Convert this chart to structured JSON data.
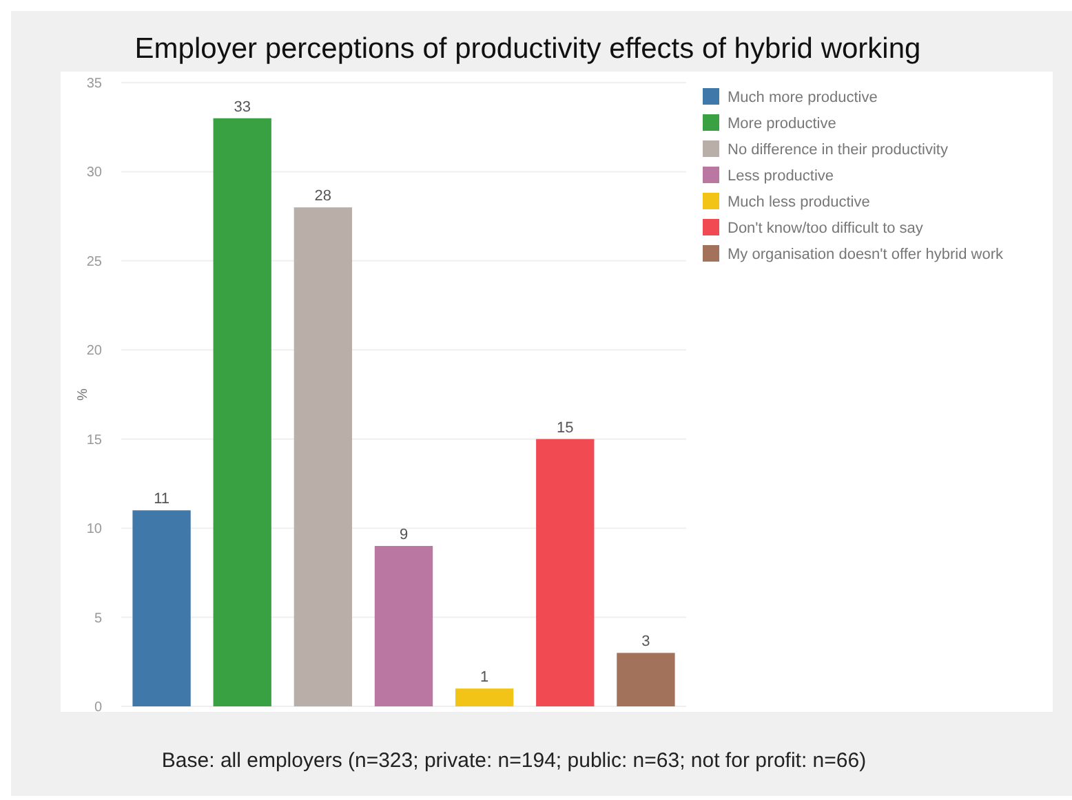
{
  "chart_data": {
    "type": "bar",
    "title": "Employer perceptions of productivity effects of hybrid working",
    "ylabel": "%",
    "categories": [
      null,
      null,
      null,
      null,
      null,
      null,
      null
    ],
    "series": [
      {
        "name": "Much more productive",
        "color": "#4178aa",
        "values": [
          11,
          null,
          null,
          null,
          null,
          null,
          null
        ]
      },
      {
        "name": "More productive",
        "color": "#3aa142",
        "values": [
          null,
          33,
          null,
          null,
          null,
          null,
          null
        ]
      },
      {
        "name": "No difference in their productivity",
        "color": "#baaea8",
        "values": [
          null,
          null,
          28,
          null,
          null,
          null,
          null
        ]
      },
      {
        "name": "Less productive",
        "color": "#b977a2",
        "values": [
          null,
          null,
          null,
          9,
          null,
          null,
          null
        ]
      },
      {
        "name": "Much less productive",
        "color": "#f2c418",
        "values": [
          null,
          null,
          null,
          null,
          1,
          null,
          null
        ]
      },
      {
        "name": "Don't know/too difficult to say",
        "color": "#f24a52",
        "values": [
          null,
          null,
          null,
          null,
          null,
          15,
          null
        ]
      },
      {
        "name": "My organisation doesn't offer hybrid work",
        "color": "#a2735a",
        "values": [
          null,
          null,
          null,
          null,
          null,
          null,
          3
        ]
      }
    ],
    "ylim": [
      0,
      35
    ],
    "yticks": [
      0,
      5,
      10,
      15,
      20,
      25,
      30,
      35
    ],
    "grid": "y",
    "legend": "top right",
    "data_labels": true,
    "annotations": [
      "Base: all employers (n=323; private: n=194; public: n=63; not for profit: n=66)"
    ]
  }
}
